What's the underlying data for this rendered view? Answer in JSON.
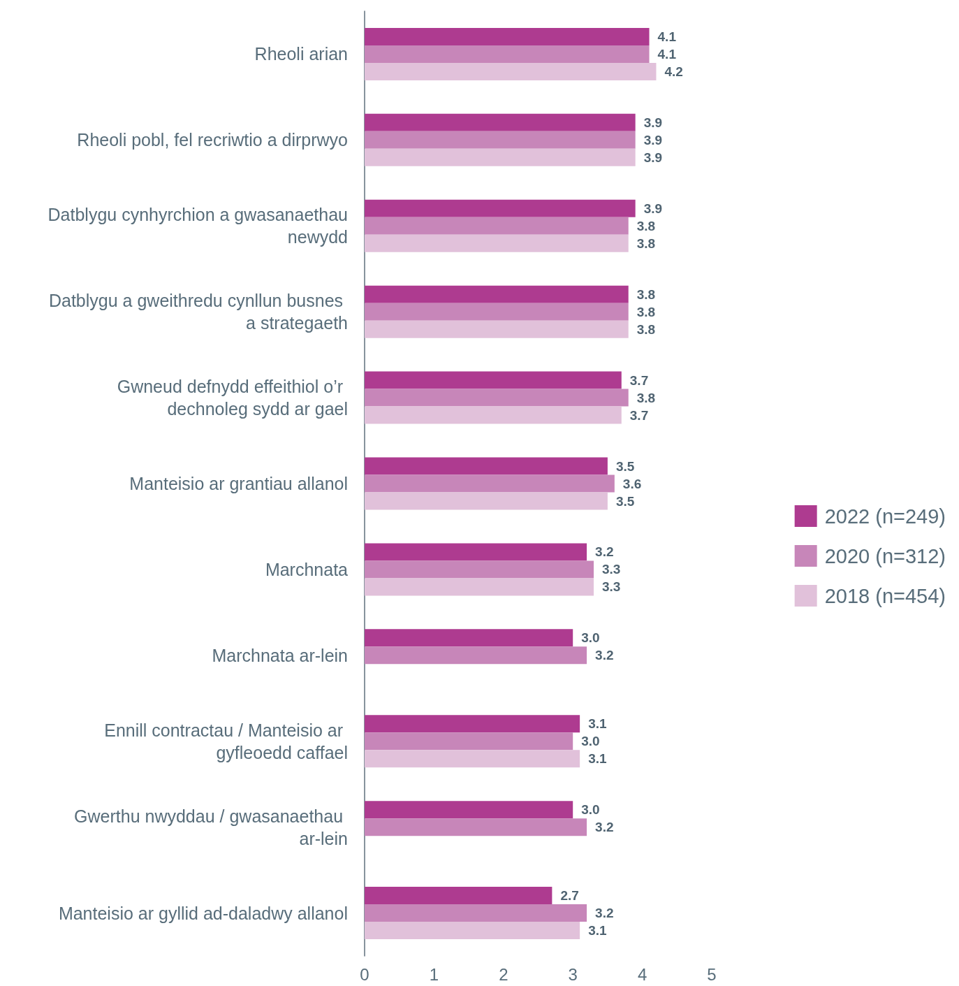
{
  "chart_data": {
    "type": "bar",
    "orientation": "horizontal",
    "categories": [
      "Rheoli arian",
      "Rheoli pobl, fel recriwtio a dirprwyo",
      "Datblygu cynhyrchion a gwasanaethau newydd",
      "Datblygu a gweithredu cynllun busnes a strategaeth",
      "Gwneud defnydd effeithiol o’r dechnoleg sydd ar gael",
      "Manteisio ar grantiau allanol",
      "Marchnata",
      "Marchnata ar-lein",
      "Ennill contractau / Manteisio ar gyfleoedd caffael",
      "Gwerthu nwyddau / gwasanaethau ar-lein",
      "Manteisio ar gyllid ad-daladwy allanol"
    ],
    "series": [
      {
        "name": "2022 (n=249)",
        "color": "#ae3b90",
        "values": [
          4.1,
          3.9,
          3.9,
          3.8,
          3.7,
          3.5,
          3.2,
          3.0,
          3.1,
          3.0,
          2.7
        ],
        "value_labels": [
          "4.1",
          "3.9",
          "3.9",
          "3.8",
          "3.7",
          "3.5",
          "3.2",
          "3.0",
          "3.1",
          "3.0",
          "2.7"
        ]
      },
      {
        "name": "2020 (n=312)",
        "color": "#c786b9",
        "values": [
          4.1,
          3.9,
          3.8,
          3.8,
          3.8,
          3.6,
          3.3,
          3.2,
          3.0,
          3.2,
          3.2
        ],
        "value_labels": [
          "4.1",
          "3.9",
          "3.8",
          "3.8",
          "3.8",
          "3.6",
          "3.3",
          "3.2",
          "3.0",
          "3.2",
          "3.2"
        ]
      },
      {
        "name": "2018 (n=454)",
        "color": "#e1c1da",
        "values": [
          4.2,
          3.9,
          3.8,
          3.8,
          3.7,
          3.5,
          3.3,
          null,
          3.1,
          null,
          3.1
        ],
        "value_labels": [
          "4.2",
          "3.9",
          "3.8",
          "3.8",
          "3.7",
          "3.5",
          "3.3",
          null,
          "3.1",
          null,
          "3.1"
        ]
      }
    ],
    "xlim": [
      0,
      5
    ],
    "xticks": [
      0,
      1,
      2,
      3,
      4,
      5
    ],
    "legend": "right"
  }
}
